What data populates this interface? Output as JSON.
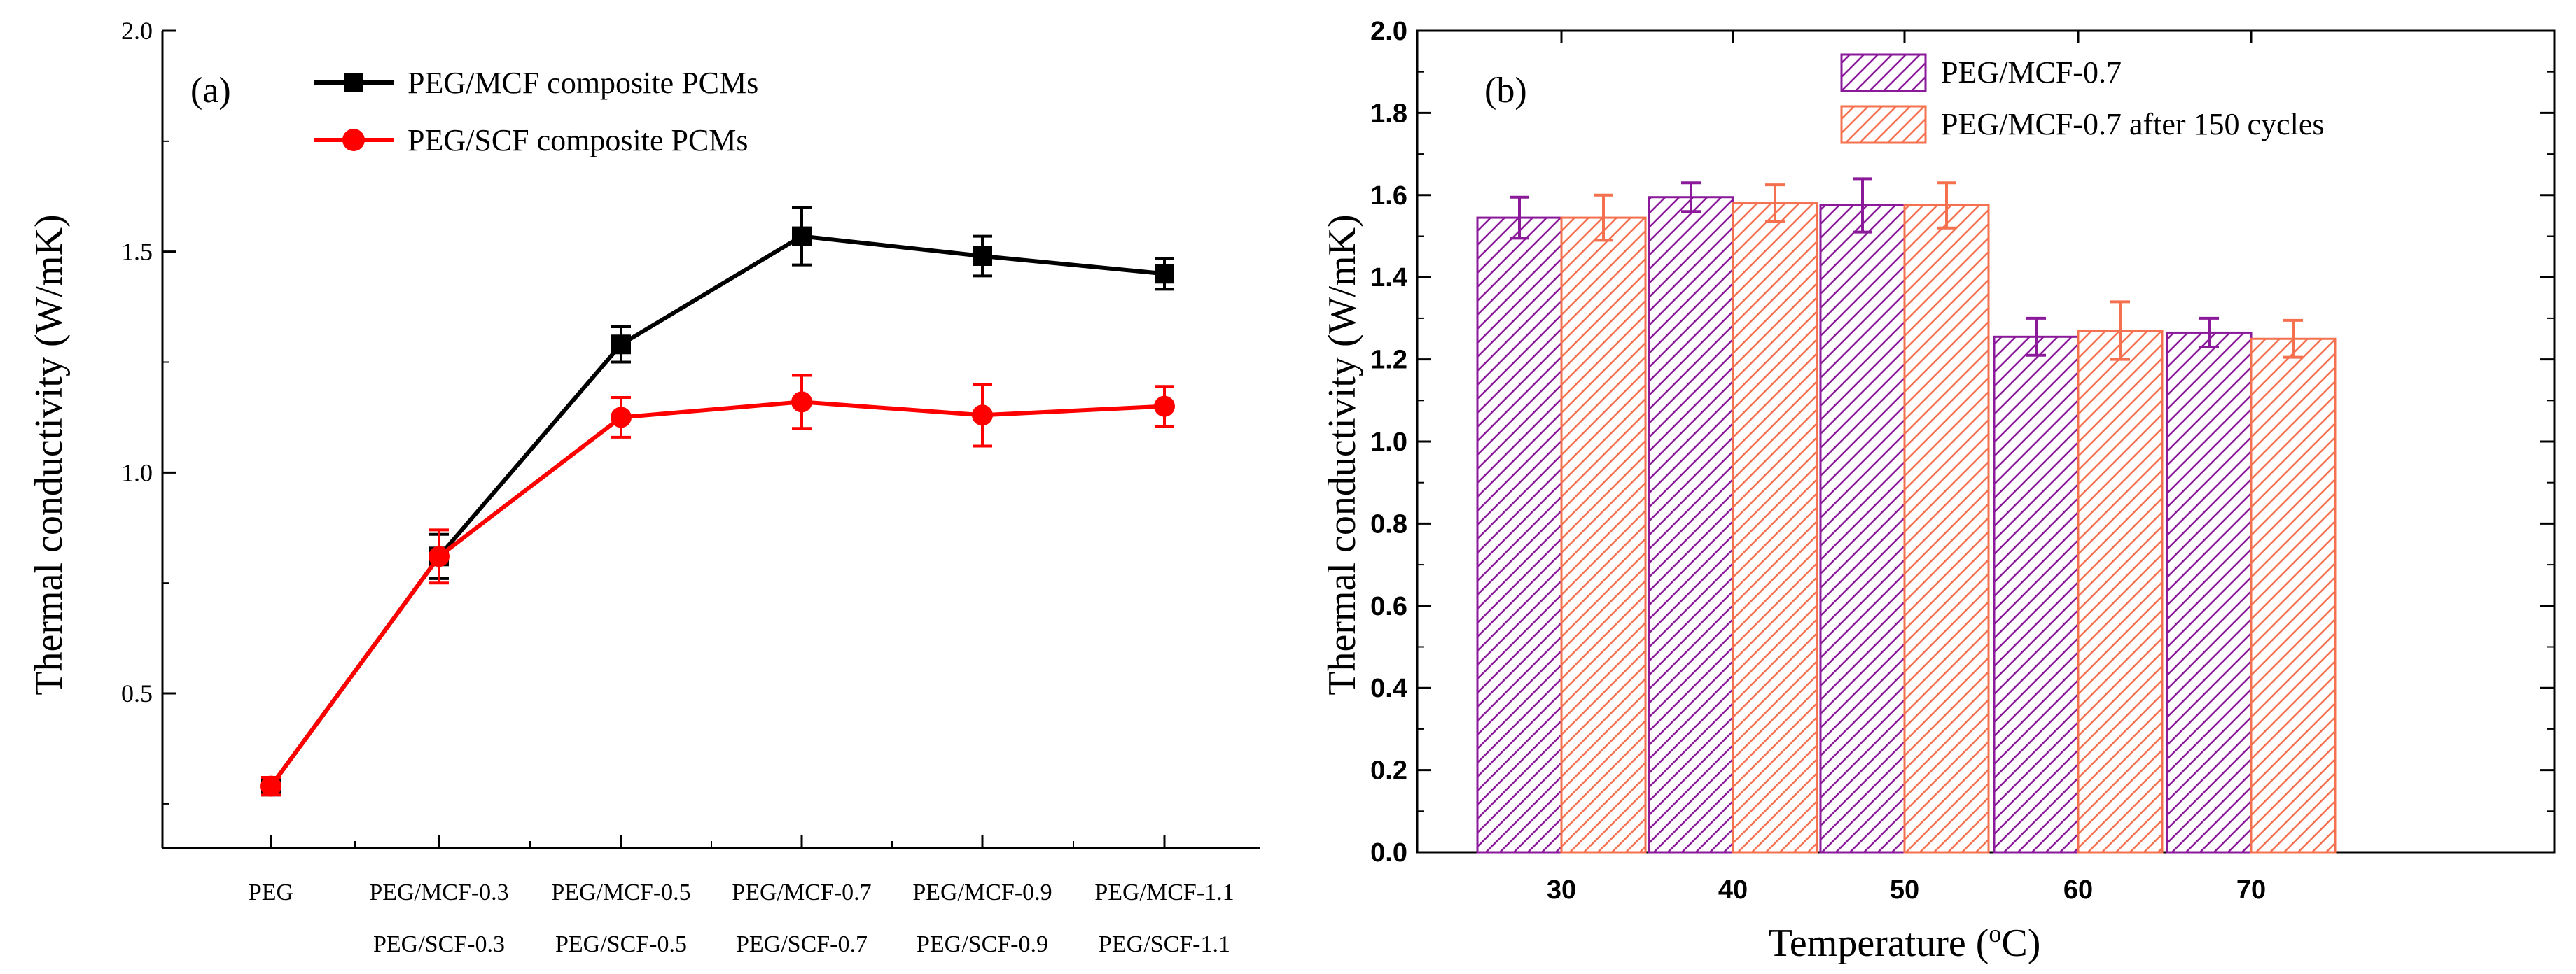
{
  "chart_data": [
    {
      "type": "line",
      "panel_label": "(a)",
      "ylabel": "Thermal conductivity (W/mK)",
      "xlabel": "",
      "ylim": [
        0.15,
        2.0
      ],
      "yticks": [
        "0.5",
        "1.0",
        "1.5",
        "2.0"
      ],
      "ytick_values": [
        0.5,
        1.0,
        1.5,
        2.0
      ],
      "categories_line1": [
        "PEG",
        "PEG/MCF-0.3",
        "PEG/MCF-0.5",
        "PEG/MCF-0.7",
        "PEG/MCF-0.9",
        "PEG/MCF-1.1"
      ],
      "categories_line2": [
        "",
        "PEG/SCF-0.3",
        "PEG/SCF-0.5",
        "PEG/SCF-0.7",
        "PEG/SCF-0.9",
        "PEG/SCF-1.1"
      ],
      "legend_position": "top-center",
      "series": [
        {
          "name": "PEG/MCF composite PCMs",
          "color": "#000000",
          "marker": "square",
          "values": [
            0.29,
            0.81,
            1.29,
            1.535,
            1.49,
            1.45
          ],
          "errors": [
            0.02,
            0.05,
            0.04,
            0.065,
            0.045,
            0.035
          ]
        },
        {
          "name": "PEG/SCF composite PCMs",
          "color": "#ff0000",
          "marker": "circle",
          "values": [
            0.29,
            0.81,
            1.125,
            1.16,
            1.13,
            1.15
          ],
          "errors": [
            0.02,
            0.06,
            0.045,
            0.06,
            0.07,
            0.045
          ]
        }
      ]
    },
    {
      "type": "bar",
      "panel_label": "(b)",
      "ylabel": "Thermal conductivity (W/mK)",
      "xlabel": "Temperature (°C)",
      "xlabel_prefix": "Temperature (",
      "xlabel_sup": "o",
      "xlabel_suffix": "C)",
      "ylim": [
        0.0,
        2.0
      ],
      "yticks": [
        "0.0",
        "0.2",
        "0.4",
        "0.6",
        "0.8",
        "1.0",
        "1.2",
        "1.4",
        "1.6",
        "1.8",
        "2.0"
      ],
      "ytick_values": [
        0.0,
        0.2,
        0.4,
        0.6,
        0.8,
        1.0,
        1.2,
        1.4,
        1.6,
        1.8,
        2.0
      ],
      "categories": [
        "30",
        "40",
        "50",
        "60",
        "70"
      ],
      "legend_position": "top-center",
      "series": [
        {
          "name": "PEG/MCF-0.7",
          "color": "#8b1a9b",
          "values": [
            1.545,
            1.595,
            1.575,
            1.255,
            1.265
          ],
          "errors": [
            0.05,
            0.035,
            0.065,
            0.045,
            0.035
          ]
        },
        {
          "name": "PEG/MCF-0.7 after 150 cycles",
          "color": "#f4704f",
          "values": [
            1.545,
            1.58,
            1.575,
            1.27,
            1.25
          ],
          "errors": [
            0.055,
            0.045,
            0.055,
            0.07,
            0.045
          ]
        }
      ]
    }
  ]
}
